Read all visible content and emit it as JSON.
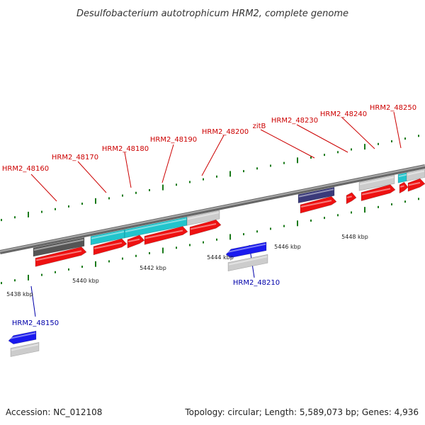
{
  "title": "Desulfobacterium autotrophicum HRM2, complete genome",
  "accession": "Accession: NC_012108",
  "topology": "Topology: circular; Length: 5,589,073 bp; Genes: 4,936",
  "colors": {
    "forward_label": "#cc0000",
    "reverse_label": "#0000aa",
    "backbone": "#888888",
    "tick": "#1a7a1a",
    "cds_red": "#ee1111",
    "blue": "#1a1aee",
    "cyan": "#22c4cc",
    "gray": "#cccccc",
    "dark_gray": "#555555",
    "slate": "#3a3a7a"
  },
  "scale_labels": [
    "5438 kbp",
    "5440 kbp",
    "5442 kbp",
    "5444 kbp",
    "5446 kbp",
    "5448 kbp"
  ],
  "forward_labels": [
    "HRM2_48160",
    "HRM2_48170",
    "HRM2_48180",
    "HRM2_48190",
    "HRM2_48200",
    "zitB",
    "HRM2_48230",
    "HRM2_48240",
    "HRM2_48250"
  ],
  "reverse_labels": [
    "HRM2_48150",
    "HRM2_48210"
  ]
}
